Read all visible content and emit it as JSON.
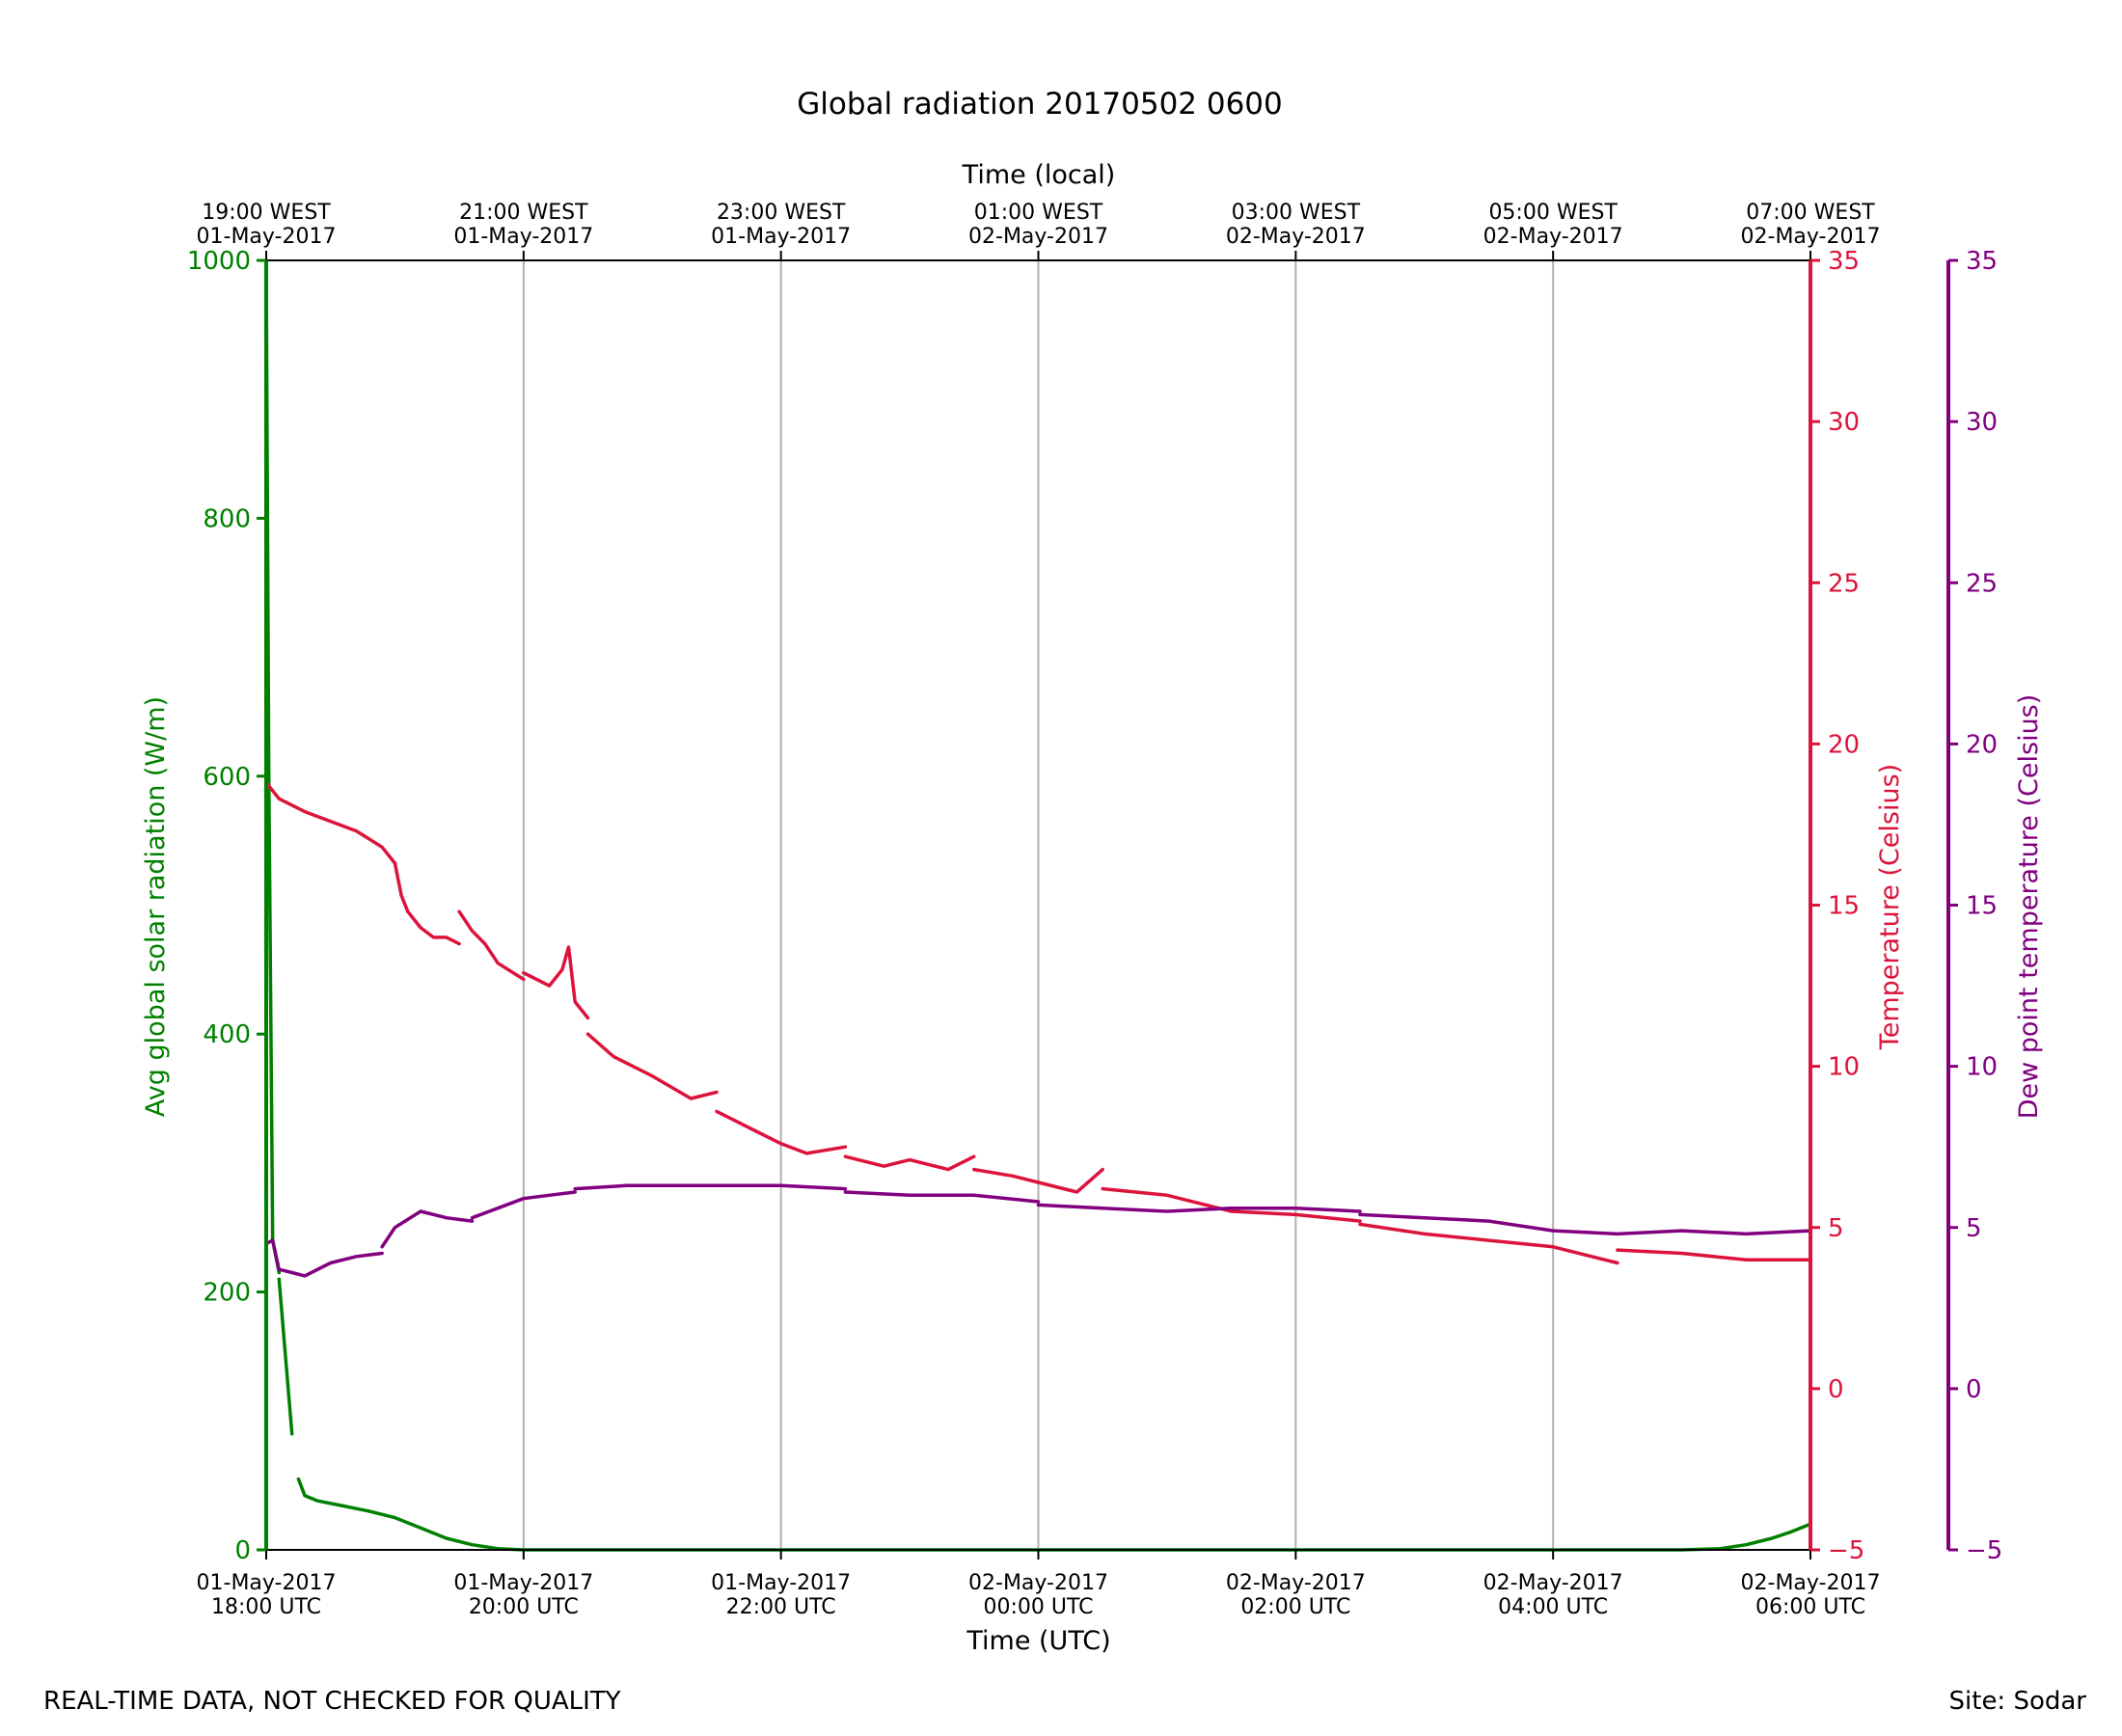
{
  "title": "Global radiation 20170502 0600",
  "footer": {
    "left": "REAL-TIME DATA, NOT CHECKED FOR QUALITY",
    "right": "Site: Sodar"
  },
  "colors": {
    "radiation": "#008000",
    "temperature": "#dc143c",
    "dewpoint": "#800080",
    "grid": "#b0b0b0"
  },
  "chart_data": {
    "type": "line",
    "title": "Global radiation 20170502 0600",
    "xlabel": "Time (UTC)",
    "x2label": "Time (local)",
    "xlim_hours_utc": [
      18,
      30
    ],
    "grid": "vertical",
    "x_ticks": [
      {
        "hour": 18,
        "utc_date": "01-May-2017",
        "utc_time": "18:00 UTC",
        "local_time": "19:00 WEST",
        "local_date": "01-May-2017"
      },
      {
        "hour": 20,
        "utc_date": "01-May-2017",
        "utc_time": "20:00 UTC",
        "local_time": "21:00 WEST",
        "local_date": "01-May-2017"
      },
      {
        "hour": 22,
        "utc_date": "01-May-2017",
        "utc_time": "22:00 UTC",
        "local_time": "23:00 WEST",
        "local_date": "01-May-2017"
      },
      {
        "hour": 24,
        "utc_date": "02-May-2017",
        "utc_time": "00:00 UTC",
        "local_time": "01:00 WEST",
        "local_date": "02-May-2017"
      },
      {
        "hour": 26,
        "utc_date": "02-May-2017",
        "utc_time": "02:00 UTC",
        "local_time": "03:00 WEST",
        "local_date": "02-May-2017"
      },
      {
        "hour": 28,
        "utc_date": "02-May-2017",
        "utc_time": "04:00 UTC",
        "local_time": "05:00 WEST",
        "local_date": "02-May-2017"
      },
      {
        "hour": 30,
        "utc_date": "02-May-2017",
        "utc_time": "06:00 UTC",
        "local_time": "07:00 WEST",
        "local_date": "02-May-2017"
      }
    ],
    "axes": {
      "radiation": {
        "label": "Avg global solar radiation (W/m)",
        "ylim": [
          0,
          1000
        ],
        "ticks": [
          0,
          200,
          400,
          600,
          800,
          1000
        ]
      },
      "temperature": {
        "label": "Temperature (Celsius)",
        "ylim": [
          -5,
          35
        ],
        "ticks": [
          -5,
          0,
          5,
          10,
          15,
          20,
          25,
          30,
          35
        ]
      },
      "dewpoint": {
        "label": "Dew point temperature (Celsius)",
        "ylim": [
          -5,
          35
        ],
        "ticks": [
          -5,
          0,
          5,
          10,
          15,
          20,
          25,
          30,
          35
        ]
      }
    },
    "series": [
      {
        "key": "radiation",
        "segments": [
          {
            "x": [
              18.0,
              18.02,
              18.05,
              18.1
            ],
            "y": [
              1000,
              600,
              240,
              215
            ]
          },
          {
            "x": [
              18.1,
              18.15,
              18.2
            ],
            "y": [
              210,
              150,
              90
            ]
          },
          {
            "x": [
              18.25,
              18.3,
              18.4,
              18.6,
              18.8,
              19.0,
              19.2,
              19.4,
              19.6,
              19.8,
              20.0
            ],
            "y": [
              55,
              42,
              38,
              34,
              30,
              25,
              17,
              9,
              4,
              1,
              0
            ]
          },
          {
            "x": [
              20.0,
              22.0,
              24.0,
              26.0,
              28.0,
              29.0,
              29.3,
              29.5,
              29.7,
              29.85,
              30.0
            ],
            "y": [
              0,
              0,
              0,
              0,
              0,
              0,
              1,
              4,
              9,
              14,
              20
            ]
          }
        ]
      },
      {
        "key": "temperature",
        "segments": [
          {
            "x": [
              18.0,
              18.1,
              18.3,
              18.5,
              18.7,
              18.9,
              19.0
            ],
            "y": [
              18.8,
              18.3,
              17.9,
              17.6,
              17.3,
              16.8,
              16.3
            ]
          },
          {
            "x": [
              19.0,
              19.05,
              19.1,
              19.2,
              19.3,
              19.4,
              19.5
            ],
            "y": [
              16.3,
              15.3,
              14.8,
              14.3,
              14.0,
              14.0,
              13.8
            ]
          },
          {
            "x": [
              19.5,
              19.6,
              19.7,
              19.8,
              20.0
            ],
            "y": [
              14.8,
              14.2,
              13.8,
              13.2,
              12.7
            ]
          },
          {
            "x": [
              20.0,
              20.2,
              20.3,
              20.35,
              20.4,
              20.5
            ],
            "y": [
              12.9,
              12.5,
              13.0,
              13.7,
              12.0,
              11.5
            ]
          },
          {
            "x": [
              20.5,
              20.7,
              21.0,
              21.3,
              21.5
            ],
            "y": [
              11.0,
              10.3,
              9.7,
              9.0,
              9.2
            ]
          },
          {
            "x": [
              21.5,
              21.8,
              22.0,
              22.2,
              22.5
            ],
            "y": [
              8.6,
              8.0,
              7.6,
              7.3,
              7.5
            ]
          },
          {
            "x": [
              22.5,
              22.8,
              23.0,
              23.3,
              23.5
            ],
            "y": [
              7.2,
              6.9,
              7.1,
              6.8,
              7.2
            ]
          },
          {
            "x": [
              23.5,
              23.8,
              24.0,
              24.3,
              24.5
            ],
            "y": [
              6.8,
              6.6,
              6.4,
              6.1,
              6.8
            ]
          },
          {
            "x": [
              24.5,
              25.0,
              25.5,
              26.0,
              26.5
            ],
            "y": [
              6.2,
              6.0,
              5.5,
              5.4,
              5.2
            ]
          },
          {
            "x": [
              26.5,
              27.0,
              27.5,
              28.0,
              28.5
            ],
            "y": [
              5.1,
              4.8,
              4.6,
              4.4,
              3.9
            ]
          },
          {
            "x": [
              28.5,
              29.0,
              29.5,
              30.0
            ],
            "y": [
              4.3,
              4.2,
              4.0,
              4.0
            ]
          }
        ]
      },
      {
        "key": "dewpoint",
        "segments": [
          {
            "x": [
              18.0,
              18.05,
              18.1,
              18.2,
              18.3,
              18.5,
              18.7,
              18.9
            ],
            "y": [
              4.5,
              4.6,
              3.7,
              3.6,
              3.5,
              3.9,
              4.1,
              4.2
            ]
          },
          {
            "x": [
              18.9,
              19.0,
              19.2,
              19.4,
              19.6
            ],
            "y": [
              4.4,
              5.0,
              5.5,
              5.3,
              5.2
            ]
          },
          {
            "x": [
              19.6,
              19.8,
              20.0,
              20.2,
              20.4
            ],
            "y": [
              5.3,
              5.6,
              5.9,
              6.0,
              6.1
            ]
          },
          {
            "x": [
              20.4,
              20.8,
              21.2,
              21.6,
              22.0,
              22.5
            ],
            "y": [
              6.2,
              6.3,
              6.3,
              6.3,
              6.3,
              6.2
            ]
          },
          {
            "x": [
              22.5,
              23.0,
              23.5,
              24.0
            ],
            "y": [
              6.1,
              6.0,
              6.0,
              5.8
            ]
          },
          {
            "x": [
              24.0,
              24.5,
              25.0,
              25.5,
              26.0,
              26.5
            ],
            "y": [
              5.7,
              5.6,
              5.5,
              5.6,
              5.6,
              5.5
            ]
          },
          {
            "x": [
              26.5,
              27.0,
              27.5,
              28.0,
              28.5,
              29.0,
              29.5,
              30.0
            ],
            "y": [
              5.4,
              5.3,
              5.2,
              4.9,
              4.8,
              4.9,
              4.8,
              4.9
            ]
          }
        ]
      }
    ]
  }
}
